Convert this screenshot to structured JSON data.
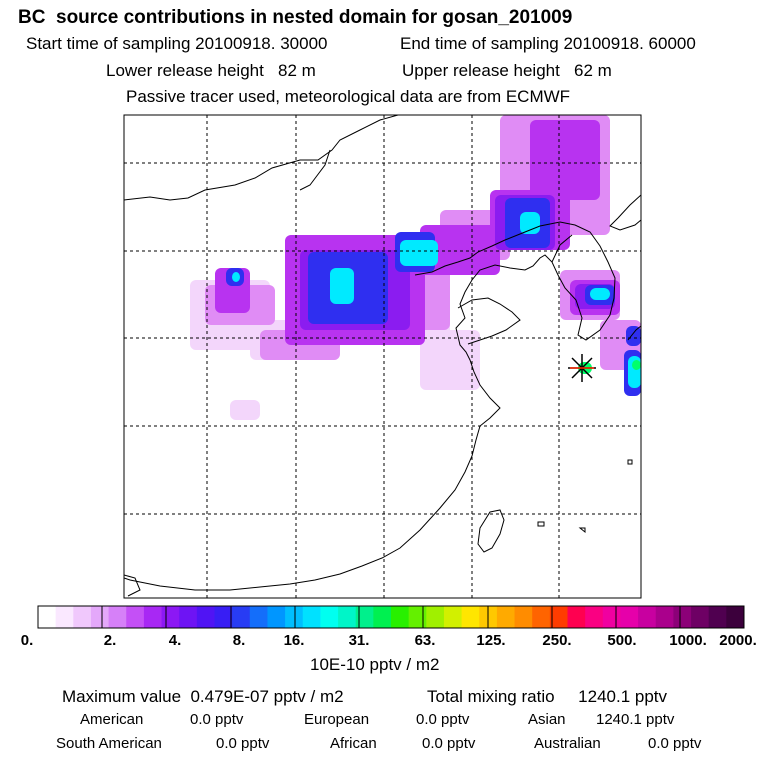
{
  "title": "BC  source contributions in nested domain for gosan_201009",
  "header": {
    "start_label": "Start time of sampling 20100918. 30000",
    "end_label": "End time of sampling 20100918. 60000",
    "lower_label": "Lower release height   82 m",
    "upper_label": "Upper release height   62 m",
    "tracer_note": "Passive tracer used, meteorological data are from ECMWF"
  },
  "colorbar": {
    "labels": [
      "0.",
      "2.",
      "4.",
      "8.",
      "16.",
      "31.",
      "63.",
      "125.",
      "250.",
      "500.",
      "1000.",
      "2000."
    ],
    "unit": "10E-10 pptv / m2"
  },
  "summary": {
    "max_value": "Maximum value  0.479E-07 pptv / m2",
    "total_mixing": "Total mixing ratio     1240.1 pptv",
    "regions": [
      {
        "name": "American",
        "value": "0.0 pptv"
      },
      {
        "name": "European",
        "value": "0.0 pptv"
      },
      {
        "name": "Asian",
        "value": "1240.1 pptv"
      },
      {
        "name": "South American",
        "value": "0.0 pptv"
      },
      {
        "name": "African",
        "value": "0.0 pptv"
      },
      {
        "name": "Australian",
        "value": "0.0 pptv"
      }
    ]
  },
  "colors": {
    "light": "#f3d6fb",
    "pink": "#e08cf5",
    "violet": "#b833f0",
    "purple": "#8b1cf0",
    "blue": "#2f2ff0",
    "cyan": "#00eaff",
    "green": "#00ff6a"
  }
}
